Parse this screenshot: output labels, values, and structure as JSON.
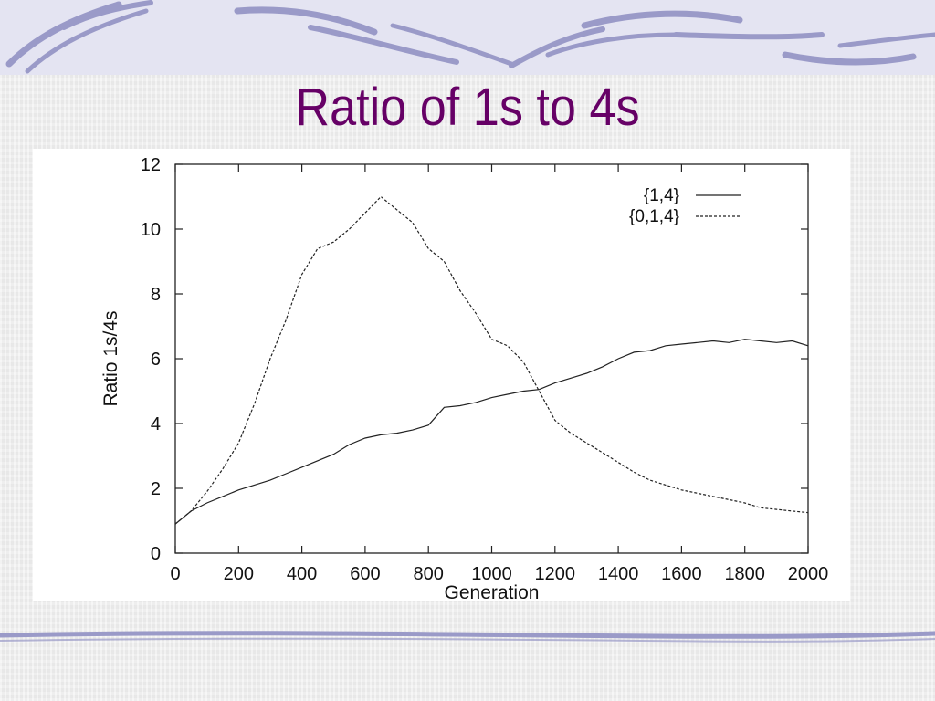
{
  "slide": {
    "title": "Ratio of 1s to 4s"
  },
  "colors": {
    "title": "#660066",
    "decor_stroke": "#9a9ac8",
    "series_line": "#222222"
  },
  "chart_data": {
    "type": "line",
    "title": "",
    "xlabel": "Generation",
    "ylabel": "Ratio 1s/4s",
    "xlim": [
      0,
      2000
    ],
    "ylim": [
      0,
      12
    ],
    "xticks": [
      0,
      200,
      400,
      600,
      800,
      1000,
      1200,
      1400,
      1600,
      1800,
      2000
    ],
    "yticks": [
      0,
      2,
      4,
      6,
      8,
      10,
      12
    ],
    "grid": false,
    "legend_position": "top-right",
    "series": [
      {
        "name": "{1,4}",
        "style": "solid",
        "x": [
          0,
          50,
          100,
          150,
          200,
          250,
          300,
          350,
          400,
          450,
          500,
          550,
          600,
          650,
          700,
          750,
          800,
          850,
          900,
          950,
          1000,
          1050,
          1100,
          1150,
          1200,
          1250,
          1300,
          1350,
          1400,
          1450,
          1500,
          1550,
          1600,
          1650,
          1700,
          1750,
          1800,
          1850,
          1900,
          1950,
          2000
        ],
        "y": [
          0.9,
          1.3,
          1.55,
          1.75,
          1.95,
          2.1,
          2.25,
          2.45,
          2.65,
          2.85,
          3.05,
          3.35,
          3.55,
          3.65,
          3.7,
          3.8,
          3.95,
          4.5,
          4.55,
          4.65,
          4.8,
          4.9,
          5.0,
          5.05,
          5.25,
          5.4,
          5.55,
          5.75,
          6.0,
          6.2,
          6.25,
          6.4,
          6.45,
          6.5,
          6.55,
          6.5,
          6.6,
          6.55,
          6.5,
          6.55,
          6.4
        ]
      },
      {
        "name": "{0,1,4}",
        "style": "dashed",
        "x": [
          0,
          50,
          100,
          150,
          200,
          250,
          300,
          350,
          400,
          450,
          500,
          550,
          600,
          650,
          700,
          750,
          800,
          850,
          900,
          950,
          1000,
          1050,
          1100,
          1150,
          1200,
          1250,
          1300,
          1350,
          1400,
          1450,
          1500,
          1550,
          1600,
          1650,
          1700,
          1750,
          1800,
          1850,
          1900,
          1950,
          2000
        ],
        "y": [
          0.9,
          1.3,
          1.9,
          2.6,
          3.4,
          4.6,
          6.0,
          7.2,
          8.6,
          9.4,
          9.6,
          10.0,
          10.5,
          11.0,
          10.6,
          10.2,
          9.4,
          9.0,
          8.1,
          7.4,
          6.6,
          6.4,
          5.9,
          5.0,
          4.1,
          3.7,
          3.4,
          3.1,
          2.8,
          2.5,
          2.25,
          2.1,
          1.95,
          1.85,
          1.75,
          1.65,
          1.55,
          1.4,
          1.35,
          1.3,
          1.25
        ]
      }
    ]
  }
}
